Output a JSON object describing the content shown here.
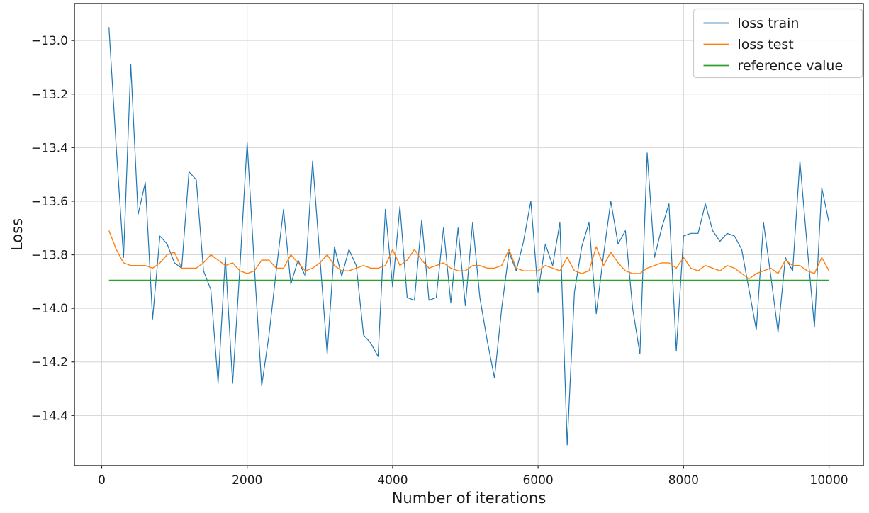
{
  "figure": {
    "background": "#ffffff"
  },
  "chart_data": {
    "type": "line",
    "title": "",
    "xlabel": "Number of iterations",
    "ylabel": "Loss",
    "xlim": [
      -375,
      10472
    ],
    "ylim": [
      -14.587,
      -12.862
    ],
    "xticks": [
      0,
      2000,
      4000,
      6000,
      8000,
      10000
    ],
    "xtick_labels": [
      "0",
      "2000",
      "4000",
      "6000",
      "8000",
      "10000"
    ],
    "yticks": [
      -13.0,
      -13.2,
      -13.4,
      -13.6,
      -13.8,
      -14.0,
      -14.2,
      -14.4
    ],
    "ytick_labels": [
      "−13.0",
      "−13.2",
      "−13.4",
      "−13.6",
      "−13.8",
      "−14.0",
      "−14.2",
      "−14.4"
    ],
    "grid": true,
    "grid_color": "#d4d4d4",
    "spine_color": "#262626",
    "legend_position": "upper right",
    "x": [
      100,
      200,
      300,
      400,
      500,
      600,
      700,
      800,
      900,
      1000,
      1100,
      1200,
      1300,
      1400,
      1500,
      1600,
      1700,
      1800,
      1900,
      2000,
      2100,
      2200,
      2300,
      2400,
      2500,
      2600,
      2700,
      2800,
      2900,
      3000,
      3100,
      3200,
      3300,
      3400,
      3500,
      3600,
      3700,
      3800,
      3900,
      4000,
      4100,
      4200,
      4300,
      4400,
      4500,
      4600,
      4700,
      4800,
      4900,
      5000,
      5100,
      5200,
      5300,
      5400,
      5500,
      5600,
      5700,
      5800,
      5900,
      6000,
      6100,
      6200,
      6300,
      6400,
      6500,
      6600,
      6700,
      6800,
      6900,
      7000,
      7100,
      7200,
      7300,
      7400,
      7500,
      7600,
      7700,
      7800,
      7900,
      8000,
      8100,
      8200,
      8300,
      8400,
      8500,
      8600,
      8700,
      8800,
      8900,
      9000,
      9100,
      9200,
      9300,
      9400,
      9500,
      9600,
      9700,
      9800,
      9900,
      10000
    ],
    "series": [
      {
        "name": "loss train",
        "color": "#1f77b4",
        "width": 1.2,
        "values": [
          -12.95,
          -13.4,
          -13.81,
          -13.09,
          -13.65,
          -13.53,
          -14.04,
          -13.73,
          -13.76,
          -13.83,
          -13.85,
          -13.49,
          -13.52,
          -13.86,
          -13.93,
          -14.28,
          -13.81,
          -14.28,
          -13.85,
          -13.38,
          -13.85,
          -14.29,
          -14.1,
          -13.86,
          -13.63,
          -13.91,
          -13.82,
          -13.88,
          -13.45,
          -13.81,
          -14.17,
          -13.77,
          -13.88,
          -13.78,
          -13.84,
          -14.1,
          -14.13,
          -14.18,
          -13.63,
          -13.92,
          -13.62,
          -13.96,
          -13.97,
          -13.67,
          -13.97,
          -13.96,
          -13.7,
          -13.98,
          -13.7,
          -13.99,
          -13.68,
          -13.96,
          -14.12,
          -14.26,
          -14.0,
          -13.79,
          -13.86,
          -13.75,
          -13.6,
          -13.94,
          -13.76,
          -13.84,
          -13.68,
          -14.51,
          -13.94,
          -13.77,
          -13.68,
          -14.02,
          -13.8,
          -13.6,
          -13.76,
          -13.71,
          -14.0,
          -14.17,
          -13.42,
          -13.81,
          -13.7,
          -13.61,
          -14.16,
          -13.73,
          -13.72,
          -13.72,
          -13.61,
          -13.71,
          -13.75,
          -13.72,
          -13.73,
          -13.78,
          -13.93,
          -14.08,
          -13.68,
          -13.88,
          -14.09,
          -13.81,
          -13.86,
          -13.45,
          -13.77,
          -14.07,
          -13.55,
          -13.68
        ]
      },
      {
        "name": "loss test",
        "color": "#ff7f0e",
        "width": 1.4,
        "values": [
          -13.71,
          -13.78,
          -13.83,
          -13.84,
          -13.84,
          -13.84,
          -13.85,
          -13.83,
          -13.8,
          -13.79,
          -13.85,
          -13.85,
          -13.85,
          -13.83,
          -13.8,
          -13.82,
          -13.84,
          -13.83,
          -13.86,
          -13.87,
          -13.86,
          -13.82,
          -13.82,
          -13.85,
          -13.85,
          -13.8,
          -13.83,
          -13.86,
          -13.85,
          -13.83,
          -13.8,
          -13.84,
          -13.86,
          -13.86,
          -13.85,
          -13.84,
          -13.85,
          -13.85,
          -13.84,
          -13.78,
          -13.84,
          -13.82,
          -13.78,
          -13.82,
          -13.85,
          -13.84,
          -13.83,
          -13.85,
          -13.86,
          -13.86,
          -13.84,
          -13.84,
          -13.85,
          -13.85,
          -13.84,
          -13.78,
          -13.85,
          -13.86,
          -13.86,
          -13.86,
          -13.84,
          -13.85,
          -13.86,
          -13.81,
          -13.86,
          -13.87,
          -13.86,
          -13.77,
          -13.84,
          -13.79,
          -13.83,
          -13.86,
          -13.87,
          -13.87,
          -13.85,
          -13.84,
          -13.83,
          -13.83,
          -13.85,
          -13.81,
          -13.85,
          -13.86,
          -13.84,
          -13.85,
          -13.86,
          -13.84,
          -13.85,
          -13.87,
          -13.89,
          -13.87,
          -13.86,
          -13.85,
          -13.87,
          -13.82,
          -13.84,
          -13.84,
          -13.86,
          -13.87,
          -13.81,
          -13.86
        ]
      },
      {
        "name": "reference value",
        "color": "#2ca02c",
        "width": 1.4,
        "x": [
          100,
          10000
        ],
        "values": [
          -13.895,
          -13.895
        ]
      }
    ]
  }
}
